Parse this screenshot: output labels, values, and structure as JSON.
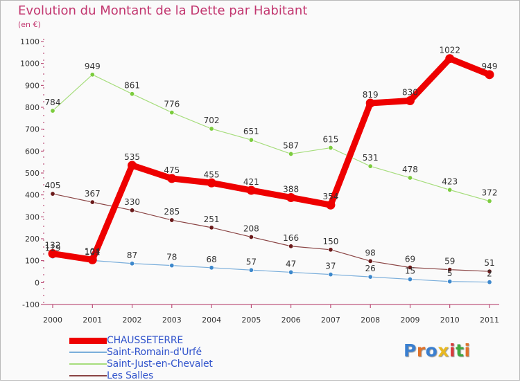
{
  "title": "Evolution du Montant de la Dette par Habitant",
  "subtitle": "(en €)",
  "logo": {
    "text": "Proxiti",
    "colors": [
      "#3a7fd0",
      "#e0722a",
      "#3a7fd0",
      "#e8b820",
      "#d83a3a",
      "#3fa83f",
      "#e0722a"
    ]
  },
  "chart_data": {
    "type": "line",
    "x": [
      2000,
      2001,
      2002,
      2003,
      2004,
      2005,
      2006,
      2007,
      2008,
      2009,
      2010,
      2011
    ],
    "yticks": [
      -100,
      0,
      100,
      200,
      300,
      400,
      500,
      600,
      700,
      800,
      900,
      1000,
      1100
    ],
    "ylim": [
      -100,
      1100
    ],
    "grid": false,
    "legend_position": "bottom-left",
    "series": [
      {
        "name": "CHAUSSETERRE",
        "values": [
          132,
          104,
          535,
          475,
          455,
          421,
          388,
          354,
          819,
          830,
          1022,
          949
        ],
        "labels": [
          "132",
          "104",
          "535",
          "475",
          "455",
          "421",
          "388",
          "354",
          "819",
          "830",
          "1022",
          "949"
        ],
        "color": "#ee0000",
        "marker_color": "#ee0000"
      },
      {
        "name": "Saint-Romain-d'Urfé",
        "values": [
          119,
          101,
          87,
          78,
          68,
          57,
          47,
          37,
          26,
          15,
          5,
          2
        ],
        "labels": [
          "119",
          "101",
          "87",
          "78",
          "68",
          "57",
          "47",
          "37",
          "26",
          "15",
          "5",
          "2"
        ],
        "color": "#7aaedb",
        "marker_color": "#3d88cc"
      },
      {
        "name": "Saint-Just-en-Chevalet",
        "values": [
          784,
          949,
          861,
          776,
          702,
          651,
          587,
          615,
          531,
          478,
          423,
          372
        ],
        "labels": [
          "784",
          "949",
          "861",
          "776",
          "702",
          "651",
          "587",
          "615",
          "531",
          "478",
          "423",
          "372"
        ],
        "color": "#a6dd7c",
        "marker_color": "#7ccc3e"
      },
      {
        "name": "Les Salles",
        "values": [
          405,
          367,
          330,
          285,
          251,
          208,
          166,
          150,
          98,
          69,
          59,
          51
        ],
        "labels": [
          "405",
          "367",
          "330",
          "285",
          "251",
          "208",
          "166",
          "150",
          "98",
          "69",
          "59",
          "51"
        ],
        "color": "#8a4444",
        "marker_color": "#6a1a1a"
      }
    ]
  }
}
